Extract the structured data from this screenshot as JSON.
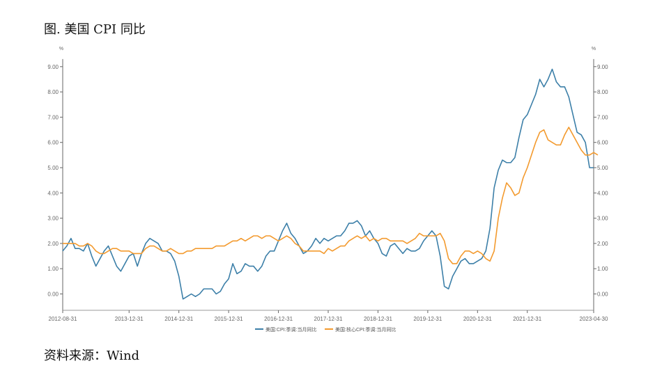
{
  "figure": {
    "title": "图. 美国 CPI 同比",
    "source": "资料来源：Wind"
  },
  "chart_data": {
    "type": "line",
    "title": "图. 美国 CPI 同比",
    "ylabel_left": "%",
    "ylabel_right": "%",
    "ylim": [
      -0.3,
      9.3
    ],
    "y_ticks": [
      0,
      1,
      2,
      3,
      4,
      5,
      6,
      7,
      8,
      9
    ],
    "y_tick_labels": [
      "0.00",
      "1.00",
      "2.00",
      "3.00",
      "4.00",
      "5.00",
      "6.00",
      "7.00",
      "8.00",
      "9.00"
    ],
    "x_start": "2012-08-31",
    "x_end": "2023-04-30",
    "x_tick_labels": [
      "2012-08-31",
      "2013-12-31",
      "2014-12-31",
      "2015-12-31",
      "2016-12-31",
      "2017-12-31",
      "2018-12-31",
      "2019-12-31",
      "2020-12-31",
      "2021-12-31",
      "2023-04-30"
    ],
    "x_tick_positions": [
      0,
      16,
      28,
      40,
      52,
      64,
      76,
      88,
      100,
      112,
      128
    ],
    "legend_position": "bottom",
    "colors": {
      "cpi": "#3c7fa8",
      "core": "#f39a2e",
      "axis": "#666666"
    },
    "series": [
      {
        "name": "美国:CPI:季调:当月同比",
        "color": "#3c7fa8",
        "values": [
          1.7,
          1.9,
          2.2,
          1.8,
          1.8,
          1.7,
          2.0,
          1.5,
          1.1,
          1.4,
          1.7,
          1.9,
          1.5,
          1.1,
          0.9,
          1.2,
          1.5,
          1.6,
          1.1,
          1.6,
          2.0,
          2.2,
          2.1,
          2.0,
          1.7,
          1.7,
          1.6,
          1.3,
          0.7,
          -0.2,
          -0.1,
          -0.0,
          -0.1,
          -0.0,
          0.2,
          0.2,
          0.2,
          0.0,
          0.1,
          0.4,
          0.6,
          1.2,
          0.8,
          0.9,
          1.2,
          1.1,
          1.1,
          0.9,
          1.1,
          1.5,
          1.7,
          1.7,
          2.1,
          2.5,
          2.8,
          2.4,
          2.2,
          1.9,
          1.6,
          1.7,
          1.9,
          2.2,
          2.0,
          2.2,
          2.1,
          2.2,
          2.3,
          2.3,
          2.5,
          2.8,
          2.8,
          2.9,
          2.7,
          2.3,
          2.5,
          2.2,
          2.0,
          1.6,
          1.5,
          1.9,
          2.0,
          1.8,
          1.6,
          1.8,
          1.7,
          1.7,
          1.8,
          2.1,
          2.3,
          2.5,
          2.3,
          1.5,
          0.3,
          0.2,
          0.7,
          1.0,
          1.3,
          1.4,
          1.2,
          1.2,
          1.3,
          1.4,
          1.7,
          2.6,
          4.2,
          4.9,
          5.3,
          5.2,
          5.2,
          5.4,
          6.2,
          6.9,
          7.1,
          7.5,
          7.9,
          8.5,
          8.2,
          8.5,
          8.9,
          8.4,
          8.2,
          8.2,
          7.8,
          7.1,
          6.4,
          6.3,
          6.0,
          5.0,
          5.0
        ]
      },
      {
        "name": "美国:核心CPI:季调:当月同比",
        "color": "#f39a2e",
        "values": [
          2.0,
          2.0,
          2.0,
          2.0,
          1.9,
          1.9,
          2.0,
          1.9,
          1.7,
          1.6,
          1.6,
          1.7,
          1.8,
          1.8,
          1.7,
          1.7,
          1.7,
          1.6,
          1.6,
          1.6,
          1.8,
          1.9,
          1.9,
          1.8,
          1.7,
          1.7,
          1.8,
          1.7,
          1.6,
          1.6,
          1.7,
          1.7,
          1.8,
          1.8,
          1.8,
          1.8,
          1.8,
          1.9,
          1.9,
          1.9,
          2.0,
          2.1,
          2.1,
          2.2,
          2.1,
          2.2,
          2.3,
          2.3,
          2.2,
          2.3,
          2.3,
          2.2,
          2.1,
          2.2,
          2.3,
          2.2,
          2.0,
          1.9,
          1.7,
          1.7,
          1.7,
          1.7,
          1.7,
          1.6,
          1.8,
          1.7,
          1.8,
          1.9,
          1.9,
          2.1,
          2.2,
          2.3,
          2.2,
          2.3,
          2.1,
          2.2,
          2.1,
          2.2,
          2.2,
          2.1,
          2.1,
          2.1,
          2.1,
          2.0,
          2.1,
          2.2,
          2.4,
          2.3,
          2.3,
          2.3,
          2.3,
          2.4,
          2.1,
          1.4,
          1.2,
          1.2,
          1.5,
          1.7,
          1.7,
          1.6,
          1.7,
          1.6,
          1.4,
          1.3,
          1.7,
          3.0,
          3.8,
          4.4,
          4.2,
          3.9,
          4.0,
          4.6,
          5.0,
          5.5,
          6.0,
          6.4,
          6.5,
          6.1,
          6.0,
          5.9,
          5.9,
          6.3,
          6.6,
          6.3,
          6.0,
          5.7,
          5.5,
          5.5,
          5.6,
          5.5
        ]
      }
    ]
  }
}
